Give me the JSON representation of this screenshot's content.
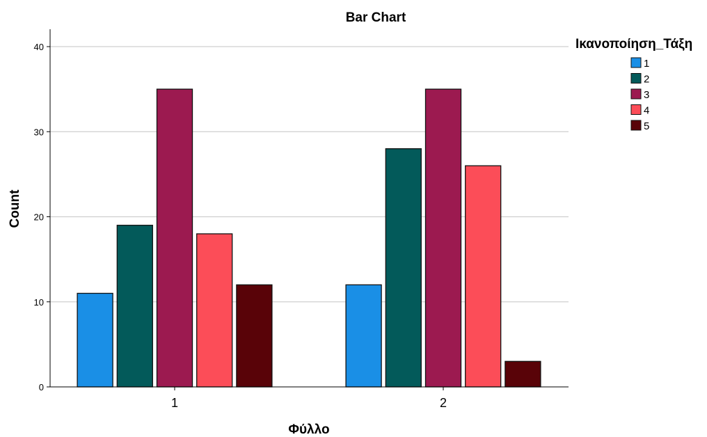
{
  "chart_data": {
    "type": "bar",
    "title": "Bar Chart",
    "xlabel": "Φύλλο",
    "ylabel": "Count",
    "categories": [
      "1",
      "2"
    ],
    "ylim": [
      0,
      40
    ],
    "yticks": [
      0,
      10,
      20,
      30,
      40
    ],
    "grid": true,
    "legend": {
      "title": "Ικανοποίηση_Τάξη",
      "placement": "right"
    },
    "series": [
      {
        "name": "1",
        "color": "#1a8fe6",
        "values": [
          11,
          12
        ]
      },
      {
        "name": "2",
        "color": "#035a5a",
        "values": [
          19,
          28
        ]
      },
      {
        "name": "3",
        "color": "#9c1a50",
        "values": [
          35,
          35
        ]
      },
      {
        "name": "4",
        "color": "#fc4d58",
        "values": [
          18,
          26
        ]
      },
      {
        "name": "5",
        "color": "#590308",
        "values": [
          12,
          3
        ]
      }
    ]
  }
}
